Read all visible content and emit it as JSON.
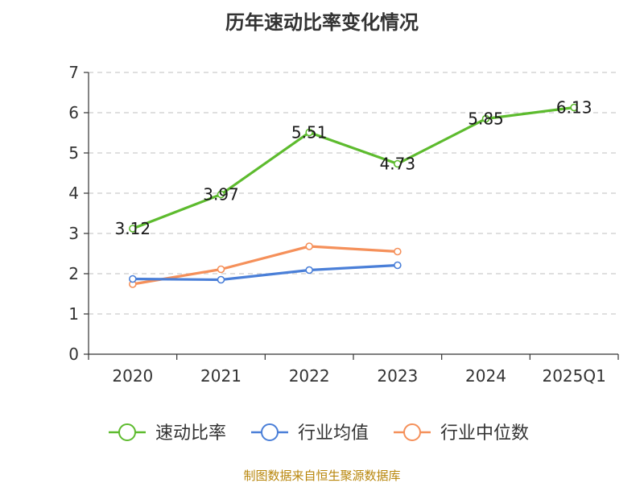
{
  "chart_data": {
    "type": "line",
    "title": "历年速动比率变化情况",
    "categories": [
      "2020",
      "2021",
      "2022",
      "2023",
      "2024",
      "2025Q1"
    ],
    "ylim": [
      0,
      7
    ],
    "yticks": [
      "0",
      "1",
      "2",
      "3",
      "4",
      "5",
      "6",
      "7"
    ],
    "grid": true,
    "legend_position": "bottom",
    "series": [
      {
        "name": "速动比率",
        "color": "#5dbb2e",
        "values": [
          3.12,
          3.97,
          5.51,
          4.73,
          5.85,
          6.13
        ],
        "labels": [
          "3.12",
          "3.97",
          "5.51",
          "4.73",
          "5.85",
          "6.13"
        ]
      },
      {
        "name": "行业均值",
        "color": "#4a7fd8",
        "values": [
          1.87,
          1.85,
          2.09,
          2.21,
          null,
          null
        ]
      },
      {
        "name": "行业中位数",
        "color": "#f5905a",
        "values": [
          1.74,
          2.11,
          2.68,
          2.55,
          null,
          null
        ]
      }
    ],
    "source": "制图数据来自恒生聚源数据库"
  }
}
